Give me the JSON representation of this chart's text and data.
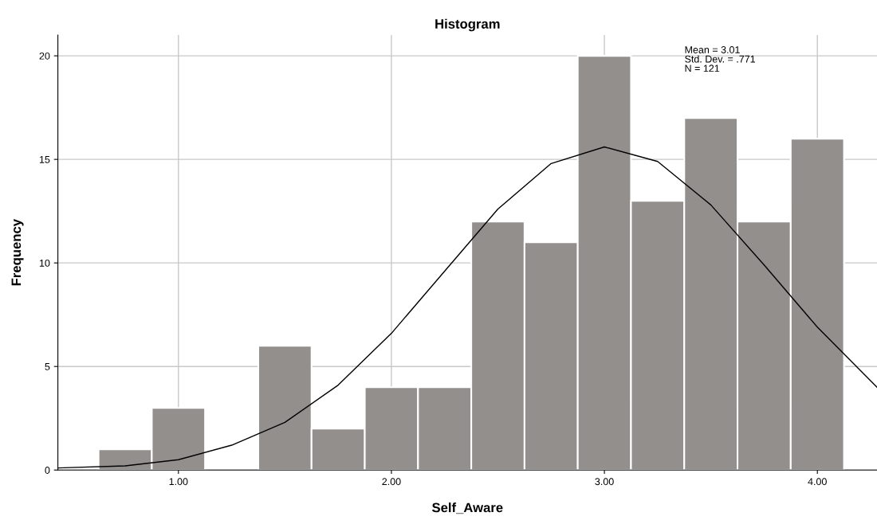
{
  "chart_data": {
    "type": "histogram",
    "title": "Histogram",
    "xlabel": "Self_Aware",
    "ylabel": "Frequency",
    "bins": [
      0.625,
      0.875,
      1.125,
      1.375,
      1.625,
      1.875,
      2.125,
      2.375,
      2.625,
      2.875,
      3.125,
      3.375,
      3.625,
      3.875,
      4.125
    ],
    "values": [
      1,
      3,
      0,
      6,
      2,
      4,
      4,
      12,
      11,
      20,
      13,
      17,
      12,
      16
    ],
    "color": "#938f8d",
    "series": [
      {
        "type": "line",
        "color": "#000000",
        "x": [
          0.434,
          0.75,
          1.0,
          1.25,
          1.5,
          1.75,
          2.0,
          2.25,
          2.5,
          2.75,
          3.0,
          3.25,
          3.5,
          3.75,
          4.0,
          4.28
        ],
        "values": [
          0.1,
          0.2,
          0.5,
          1.2,
          2.3,
          4.1,
          6.6,
          9.6,
          12.6,
          14.8,
          15.6,
          14.9,
          12.8,
          9.9,
          6.9,
          4.0
        ]
      }
    ],
    "annotations": [
      "Mean = 3.01\nStd. Dev. = .771\nN = 121"
    ],
    "xlim": [
      0.434,
      4.28
    ],
    "ylim": [
      0,
      21
    ],
    "xticks": [
      {
        "value": 1,
        "label": "1.00"
      },
      {
        "value": 2,
        "label": "2.00"
      },
      {
        "value": 3,
        "label": "3.00"
      },
      {
        "value": 4,
        "label": "4.00"
      }
    ],
    "yticks": [
      0,
      5,
      10,
      15,
      20
    ],
    "grid": true
  }
}
